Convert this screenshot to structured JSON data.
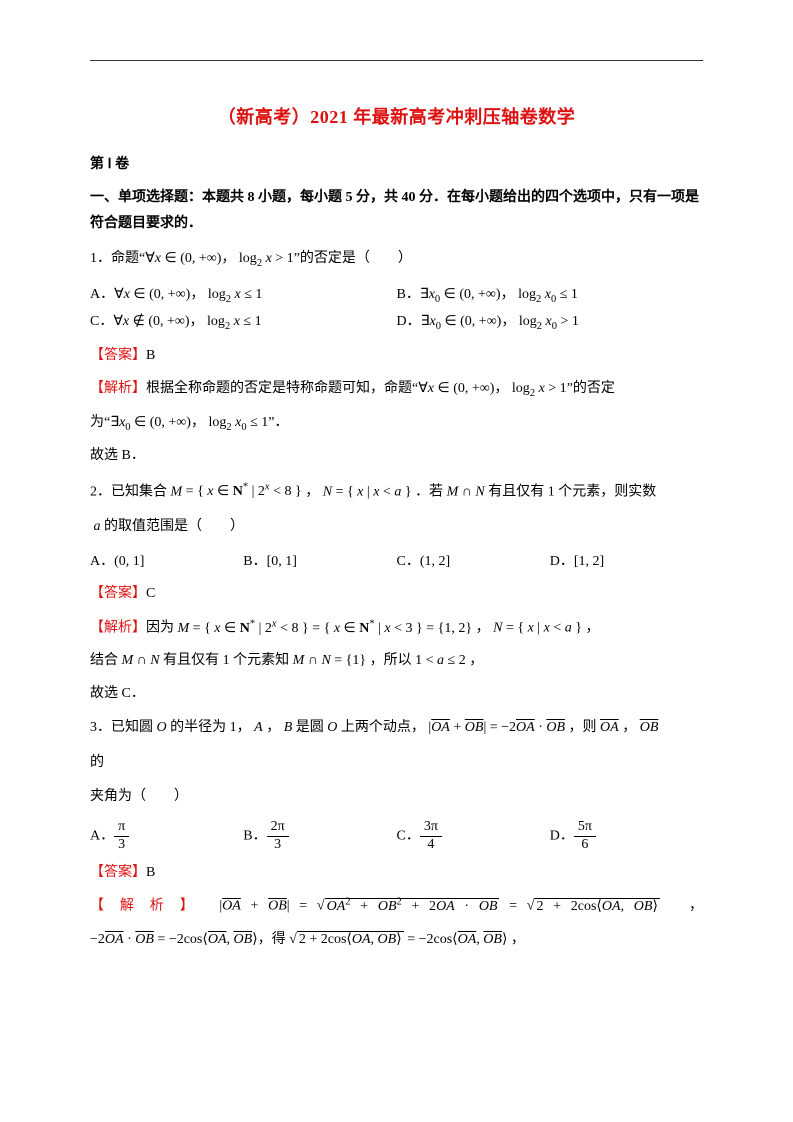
{
  "colors": {
    "accent_red": "#dd1111",
    "text": "#000000",
    "rule": "#333333"
  },
  "title": "（新高考）2021 年最新高考冲刺压轴卷数学",
  "volume": "第 Ⅰ 卷",
  "instructions": "一、单项选择题：本题共 8 小题，每小题 5 分，共 40 分．在每小题给出的四个选项中，只有一项是符合题目要求的．",
  "q1": {
    "stem_pre": "1．命题“",
    "stem_math": "∀x ∈ (0, +∞)， log₂ x > 1",
    "stem_post": "”的否定是（　　）",
    "optA_label": "A．",
    "optA": "∀x ∈ (0, +∞)， log₂ x ≤ 1",
    "optB_label": "B．",
    "optB": "∃x₀ ∈ (0, +∞)， log₂ x₀ ≤ 1",
    "optC_label": "C．",
    "optC": "∀x ∉ (0, +∞)， log₂ x ≤ 1",
    "optD_label": "D．",
    "optD": "∃x₀ ∈ (0, +∞)， log₂ x₀ > 1",
    "answer_label": "【答案】",
    "answer": "B",
    "expl_label": "【解析】",
    "expl_1_pre": "根据全称命题的否定是特称命题可知，命题“",
    "expl_1_math": "∀x ∈ (0, +∞)， log₂ x > 1",
    "expl_1_post": "”的否定",
    "expl_2_pre": "为“",
    "expl_2_math": "∃x₀ ∈ (0, +∞)， log₂ x₀ ≤ 1",
    "expl_2_post": "”．",
    "concl": "故选 B．"
  },
  "q2": {
    "stem_pre": "2．已知集合 ",
    "stem_M": "M = { x ∈ N* | 2ˣ < 8 }",
    "stem_mid1": " ， ",
    "stem_N": "N = { x | x < a }",
    "stem_mid2": " ．若 ",
    "stem_cond": "M ∩ N",
    "stem_post": " 有且仅有 1 个元素，则实数",
    "stem_line2": " a 的取值范围是（　　）",
    "optA_label": "A．",
    "optA": "(0, 1]",
    "optB_label": "B．",
    "optB": "[0, 1]",
    "optC_label": "C．",
    "optC": "(1, 2]",
    "optD_label": "D．",
    "optD": "[1, 2]",
    "answer_label": "【答案】",
    "answer": "C",
    "expl_label": "【解析】",
    "expl_1_pre": "因为 ",
    "expl_1_math": "M = { x ∈ N* | 2ˣ < 8 } = { x ∈ N* | x < 3 } = {1, 2}",
    "expl_1_mid": " ， ",
    "expl_1_math2": "N = { x | x < a }",
    "expl_1_post": " ，",
    "expl_2_pre": "结合 ",
    "expl_2_a": "M ∩ N",
    "expl_2_mid": " 有且仅有 1 个元素知 ",
    "expl_2_b": "M ∩ N = {1}",
    "expl_2_mid2": " ，所以 ",
    "expl_2_c": "1 < a ≤ 2",
    "expl_2_post": " ，",
    "concl": "故选 C．"
  },
  "q3": {
    "stem_pre": "3．已知圆 ",
    "stem_O": "O",
    "stem_mid1": " 的半径为 1， ",
    "stem_AB": "A ， B",
    "stem_mid2": " 是圆 ",
    "stem_O2": "O",
    "stem_mid3": " 上两个动点， ",
    "stem_eq_lhs": "|OA + OB|",
    "stem_eq_mid": " = ",
    "stem_eq_rhs": "−2 OA · OB",
    "stem_post": " ，则 ",
    "stem_vecs": "OA ， OB",
    "stem_line2_pre": "的",
    "stem_line3": "夹角为（　　）",
    "optA_label": "A．",
    "optA_num": "π",
    "optA_den": "3",
    "optB_label": "B．",
    "optB_num": "2π",
    "optB_den": "3",
    "optC_label": "C．",
    "optC_num": "3π",
    "optC_den": "4",
    "optD_label": "D．",
    "optD_num": "5π",
    "optD_den": "6",
    "answer_label": "【答案】",
    "answer": "B",
    "expl_label": "【 解 析 】",
    "expl_1_a": "|OA + OB|",
    "expl_1_eq1": " = ",
    "expl_1_b": "OA² + OB² + 2 OA · OB",
    "expl_1_eq2": " = ",
    "expl_1_c": "2 + 2cos⟨OA, OB⟩",
    "expl_1_post": " ，",
    "expl_2_a": "−2 OA · OB = −2cos⟨OA, OB⟩",
    "expl_2_mid": "，得 ",
    "expl_2_b": "2 + 2cos⟨OA, OB⟩",
    "expl_2_eq": " = ",
    "expl_2_c": "−2cos⟨OA, OB⟩",
    "expl_2_post": " ，"
  }
}
